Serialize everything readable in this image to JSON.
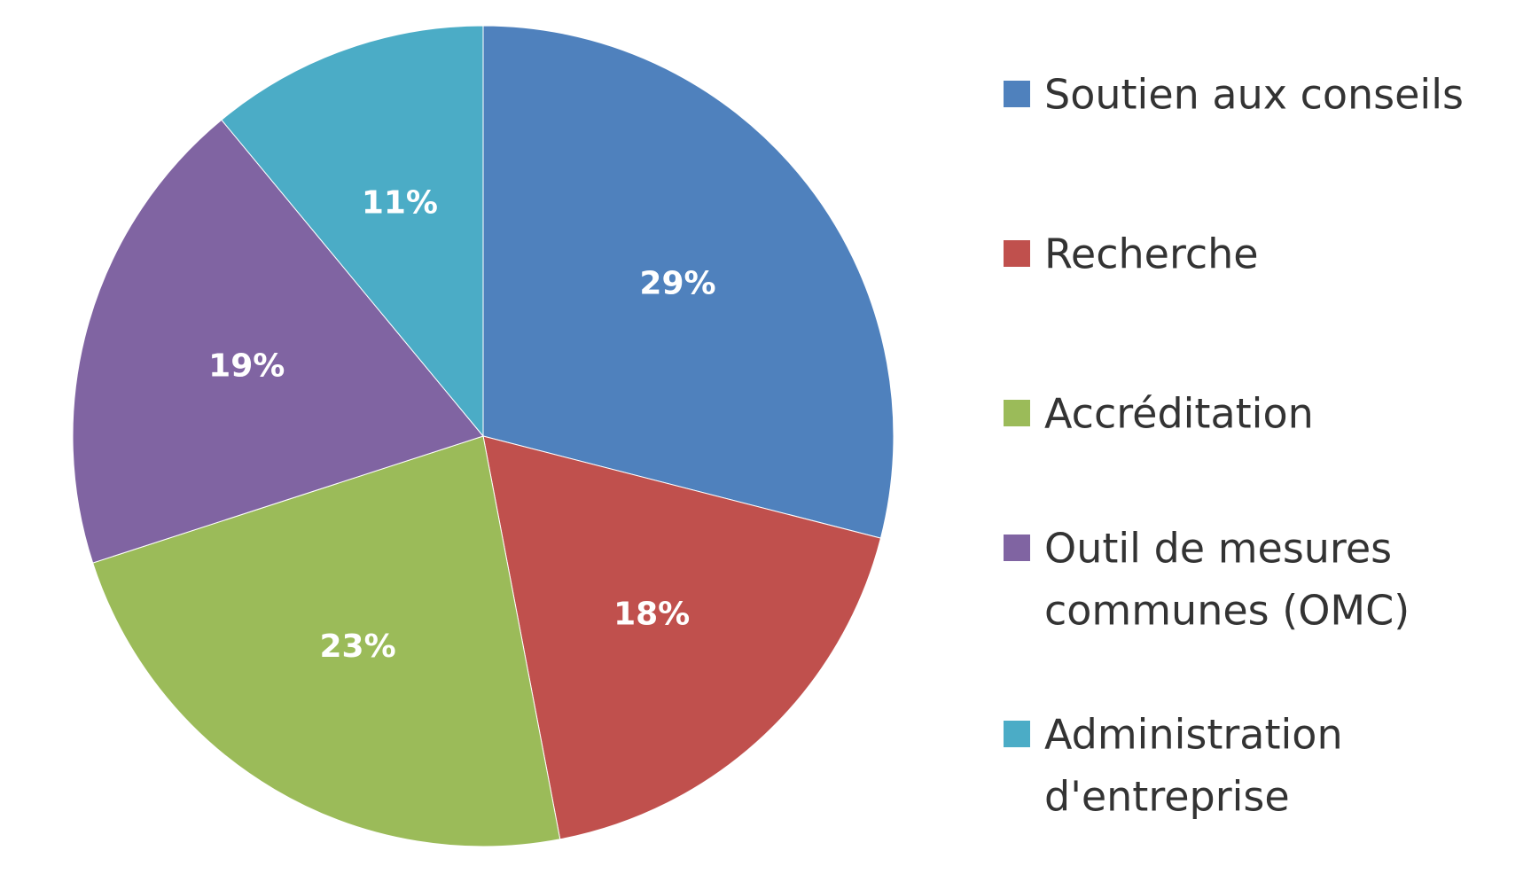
{
  "chart_data": {
    "type": "pie",
    "slices": [
      {
        "label": "Soutien aux conseils",
        "value": 29,
        "value_label": "29%",
        "color": "#4F81BD"
      },
      {
        "label": "Recherche",
        "value": 18,
        "value_label": "18%",
        "color": "#C0504D"
      },
      {
        "label": "Accréditation",
        "value": 23,
        "value_label": "23%",
        "color": "#9BBB59"
      },
      {
        "label": "Outil de mesures communes (OMC)",
        "value": 19,
        "value_label": "19%",
        "color": "#8064A2"
      },
      {
        "label": "Administration d'entreprise",
        "value": 11,
        "value_label": "11%",
        "color": "#4BACC6"
      }
    ],
    "legend": {
      "position": "right",
      "entries": [
        {
          "lines": [
            "Soutien aux conseils"
          ],
          "color": "#4F81BD"
        },
        {
          "lines": [
            "Recherche"
          ],
          "color": "#C0504D"
        },
        {
          "lines": [
            "Accréditation"
          ],
          "color": "#9BBB59"
        },
        {
          "lines": [
            "Outil de mesures",
            "communes (OMC)"
          ],
          "color": "#8064A2"
        },
        {
          "lines": [
            "Administration",
            "d'entreprise"
          ],
          "color": "#4BACC6"
        }
      ]
    },
    "start_angle": "12 o'clock",
    "direction": "clockwise"
  }
}
